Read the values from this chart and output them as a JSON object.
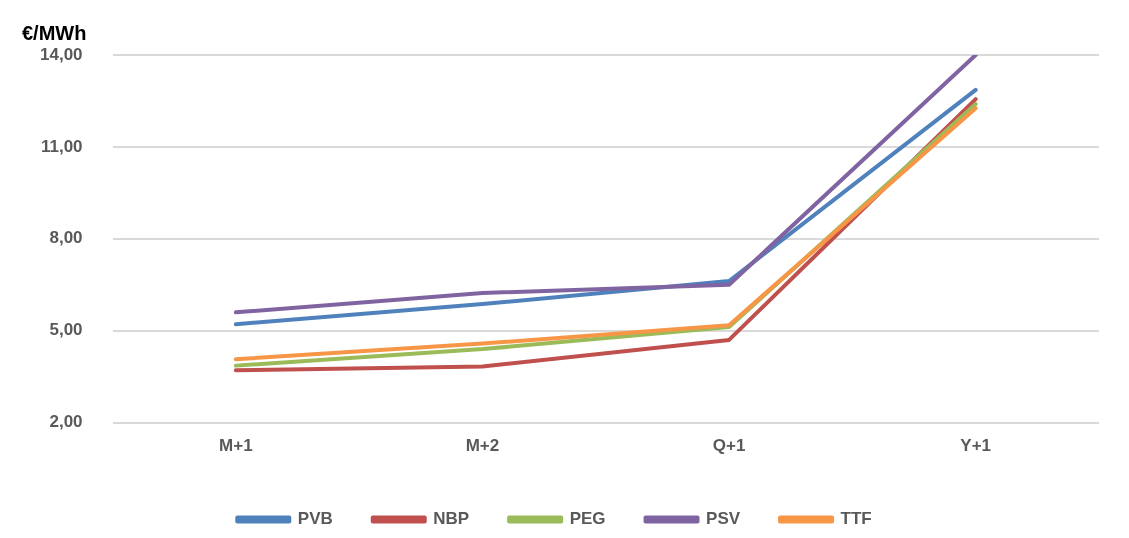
{
  "chart_data": {
    "type": "line",
    "ylabel": "€/MWh",
    "categories": [
      "M+1",
      "M+2",
      "Q+1",
      "Y+1"
    ],
    "series": [
      {
        "name": "PVB",
        "color": "#4f81bd",
        "values": [
          5.21,
          5.87,
          6.62,
          12.86
        ]
      },
      {
        "name": "NBP",
        "color": "#c0504d",
        "values": [
          3.71,
          3.83,
          4.7,
          12.56
        ]
      },
      {
        "name": "PEG",
        "color": "#9bbb59",
        "values": [
          3.86,
          4.4,
          5.12,
          12.4
        ]
      },
      {
        "name": "PSV",
        "color": "#8064a2",
        "values": [
          5.6,
          6.23,
          6.5,
          14.0
        ]
      },
      {
        "name": "TTF",
        "color": "#f79646",
        "values": [
          4.07,
          4.58,
          5.18,
          12.26
        ]
      }
    ],
    "ylim": [
      2,
      14
    ],
    "yticks": [
      {
        "value": 2,
        "label": "2,00"
      },
      {
        "value": 5,
        "label": "5,00"
      },
      {
        "value": 8,
        "label": "8,00"
      },
      {
        "value": 11,
        "label": "11,00"
      },
      {
        "value": 14,
        "label": "14,00"
      }
    ],
    "grid": "y",
    "legend": "bottom",
    "marker": "none",
    "line_style": "solid"
  }
}
